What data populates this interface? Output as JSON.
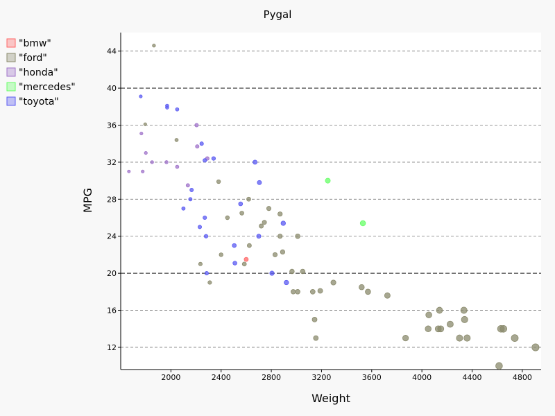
{
  "chart_data": {
    "type": "scatter",
    "title": "Pygal",
    "xlabel": "Weight",
    "ylabel": "MPG",
    "xlim": [
      1600,
      4950
    ],
    "ylim": [
      9.6,
      46.0
    ],
    "x_ticks": [
      2000,
      2400,
      2800,
      3200,
      3600,
      4000,
      4400,
      4800
    ],
    "y_ticks": [
      12,
      16,
      20,
      24,
      28,
      32,
      36,
      40,
      44
    ],
    "major_y_gridlines": [
      20,
      40
    ],
    "grid": "horizontal dashed",
    "legend_position": "top-left",
    "point_size": "proportional to weight",
    "series": [
      {
        "name": "\"bmw\"",
        "color": "#ff6666",
        "points": [
          [
            2600,
            21.5
          ]
        ]
      },
      {
        "name": "\"ford\"",
        "color": "#8a8a6c",
        "points": [
          [
            1865,
            44.6
          ],
          [
            1795,
            36.1
          ],
          [
            2045,
            34.4
          ],
          [
            2380,
            29.9
          ],
          [
            2620,
            28.0
          ],
          [
            2780,
            27.0
          ],
          [
            2565,
            26.5
          ],
          [
            2870,
            26.4
          ],
          [
            2450,
            26.0
          ],
          [
            2745,
            25.5
          ],
          [
            2720,
            25.1
          ],
          [
            2870,
            24.0
          ],
          [
            3010,
            24.0
          ],
          [
            2625,
            23.0
          ],
          [
            2890,
            22.3
          ],
          [
            2400,
            22.0
          ],
          [
            2830,
            22.0
          ],
          [
            2235,
            21.0
          ],
          [
            2585,
            21.0
          ],
          [
            2310,
            19.0
          ],
          [
            2965,
            20.2
          ],
          [
            3050,
            20.2
          ],
          [
            2975,
            18.0
          ],
          [
            3010,
            18.0
          ],
          [
            3130,
            18.0
          ],
          [
            3190,
            18.1
          ],
          [
            3295,
            19.0
          ],
          [
            3520,
            18.5
          ],
          [
            3570,
            18.0
          ],
          [
            3725,
            17.6
          ],
          [
            4055,
            15.5
          ],
          [
            4140,
            16.0
          ],
          [
            4335,
            16.0
          ],
          [
            3145,
            15.0
          ],
          [
            4340,
            15.0
          ],
          [
            4225,
            14.5
          ],
          [
            4050,
            14.0
          ],
          [
            4130,
            14.0
          ],
          [
            4150,
            14.0
          ],
          [
            4630,
            14.0
          ],
          [
            4650,
            14.0
          ],
          [
            3155,
            13.0
          ],
          [
            3870,
            13.0
          ],
          [
            4300,
            13.0
          ],
          [
            4360,
            13.0
          ],
          [
            4740,
            13.0
          ],
          [
            4905,
            12.0
          ],
          [
            4615,
            10.0
          ]
        ]
      },
      {
        "name": "\"honda\"",
        "color": "#9f72c9",
        "points": [
          [
            1765,
            35.1
          ],
          [
            1800,
            33.0
          ],
          [
            1850,
            32.0
          ],
          [
            1965,
            32.0
          ],
          [
            2050,
            31.5
          ],
          [
            1665,
            31.0
          ],
          [
            1775,
            31.0
          ],
          [
            2135,
            29.5
          ],
          [
            2210,
            33.7
          ],
          [
            2205,
            36.0
          ],
          [
            2290,
            32.4
          ]
        ]
      },
      {
        "name": "\"mercedes\"",
        "color": "#66ff66",
        "points": [
          [
            3250,
            30.0
          ],
          [
            3530,
            25.4
          ]
        ]
      },
      {
        "name": "\"toyota\"",
        "color": "#5a5af2",
        "points": [
          [
            1760,
            39.1
          ],
          [
            1970,
            38.1
          ],
          [
            1970,
            37.9
          ],
          [
            2050,
            37.7
          ],
          [
            2245,
            34.0
          ],
          [
            2270,
            32.2
          ],
          [
            2340,
            32.4
          ],
          [
            2670,
            32.0
          ],
          [
            2165,
            29.0
          ],
          [
            2705,
            29.8
          ],
          [
            2155,
            28.0
          ],
          [
            2555,
            27.5
          ],
          [
            2100,
            27.0
          ],
          [
            2270,
            26.0
          ],
          [
            2230,
            25.0
          ],
          [
            2280,
            24.0
          ],
          [
            2505,
            23.0
          ],
          [
            2700,
            24.0
          ],
          [
            2895,
            25.4
          ],
          [
            2510,
            21.1
          ],
          [
            2285,
            20.0
          ],
          [
            2805,
            20.0
          ],
          [
            2920,
            19.0
          ]
        ]
      }
    ]
  }
}
